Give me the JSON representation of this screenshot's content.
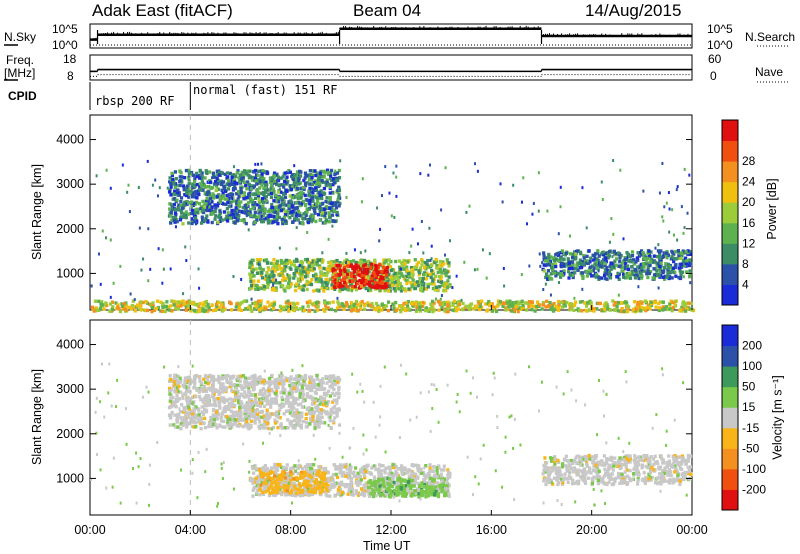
{
  "header": {
    "title_left": "Adak East (fitACF)",
    "title_center": "Beam 04",
    "title_right": "14/Aug/2015"
  },
  "side_labels": {
    "nsky": "N.Sky",
    "freq_line1": "Freq.",
    "freq_line2": "[MHz]",
    "cpid": "CPID",
    "nsearch": "N.Search",
    "nave": "Nave"
  },
  "cpid_segments": [
    {
      "label": "rbsp 200 RF"
    },
    {
      "label": "normal (fast) 151 RF"
    }
  ],
  "colors": {
    "power": [
      "#1a2bd8",
      "#2b52a8",
      "#3c8c66",
      "#5db24f",
      "#9ccc3a",
      "#f0c010",
      "#f39020",
      "#f04f10",
      "#e01010"
    ],
    "velocity": [
      "#e01010",
      "#f04f10",
      "#f39020",
      "#f8b418",
      "#c8c8c8",
      "#7ac94a",
      "#3d9a5a",
      "#2b52a8",
      "#1a2bd8"
    ]
  },
  "chart_data": [
    {
      "type": "line",
      "name": "noise-search",
      "ylim_labels": [
        "10^0",
        "10^5"
      ],
      "right_ylim_labels": [
        "10^0",
        "10^5"
      ],
      "xlim": [
        "00:00",
        "24:00"
      ],
      "segments": [
        {
          "x_hours": [
            0.0,
            0.3
          ],
          "level": 0.35
        },
        {
          "x_hours": [
            0.3,
            9.95
          ],
          "level": 0.55
        },
        {
          "x_hours": [
            9.95,
            18.0
          ],
          "level": 0.8
        },
        {
          "x_hours": [
            18.0,
            24.0
          ],
          "level": 0.5
        }
      ]
    },
    {
      "type": "line",
      "name": "frequency-nave",
      "left_ticks": [
        "8",
        "18"
      ],
      "right_ticks": [
        "0",
        "60"
      ],
      "segments": [
        {
          "x_hours": [
            0.0,
            0.3
          ],
          "freq": 10.5
        },
        {
          "x_hours": [
            0.3,
            9.95
          ],
          "freq": 11.3
        },
        {
          "x_hours": [
            9.95,
            18.0
          ],
          "freq": 10.5
        },
        {
          "x_hours": [
            18.0,
            24.0
          ],
          "freq": 11.3
        }
      ]
    },
    {
      "type": "heatmap",
      "name": "power",
      "ylabel": "Slant Range [km]",
      "yticks": [
        1000,
        2000,
        3000,
        4000
      ],
      "ylim": [
        180,
        4550
      ],
      "xlim_hours": [
        0,
        24
      ],
      "colorbar_label": "Power [dB]",
      "colorbar_ticks": [
        "4",
        "8",
        "12",
        "16",
        "20",
        "24",
        "28"
      ],
      "structures": [
        {
          "t0": 6.3,
          "t1": 14.3,
          "r0": 640,
          "r1": 1350,
          "level": 0.45
        },
        {
          "t0": 9.6,
          "t1": 11.8,
          "r0": 700,
          "r1": 1250,
          "level": 0.95
        },
        {
          "t0": 3.1,
          "t1": 9.9,
          "r0": 2150,
          "r1": 3350,
          "level": 0.25
        },
        {
          "t0": 18.0,
          "t1": 23.9,
          "r0": 900,
          "r1": 1550,
          "level": 0.25
        },
        {
          "t0": 0.0,
          "t1": 24.0,
          "r0": 180,
          "r1": 420,
          "level": 0.55
        }
      ]
    },
    {
      "type": "heatmap",
      "name": "velocity",
      "ylabel": "Slant Range [km]",
      "yticks": [
        1000,
        2000,
        3000,
        4000
      ],
      "ylim": [
        180,
        4550
      ],
      "xlim_hours": [
        0,
        24
      ],
      "xticks": [
        "00:00",
        "04:00",
        "08:00",
        "12:00",
        "16:00",
        "20:00",
        "00:00"
      ],
      "xlabel": "Time UT",
      "colorbar_label": "Velocity [m s⁻¹]",
      "colorbar_ticks": [
        "-200",
        "-100",
        "-50",
        "-15",
        "15",
        "50",
        "100",
        "200"
      ],
      "structures": [
        {
          "t0": 6.3,
          "t1": 14.3,
          "r0": 640,
          "r1": 1350,
          "vel": "grey"
        },
        {
          "t0": 6.7,
          "t1": 9.4,
          "r0": 700,
          "r1": 1200,
          "vel": "orange"
        },
        {
          "t0": 11.0,
          "t1": 14.2,
          "r0": 620,
          "r1": 1050,
          "vel": "green"
        },
        {
          "t0": 3.1,
          "t1": 9.9,
          "r0": 2150,
          "r1": 3350,
          "vel": "grey"
        },
        {
          "t0": 18.0,
          "t1": 23.9,
          "r0": 900,
          "r1": 1550,
          "vel": "grey"
        }
      ]
    }
  ]
}
